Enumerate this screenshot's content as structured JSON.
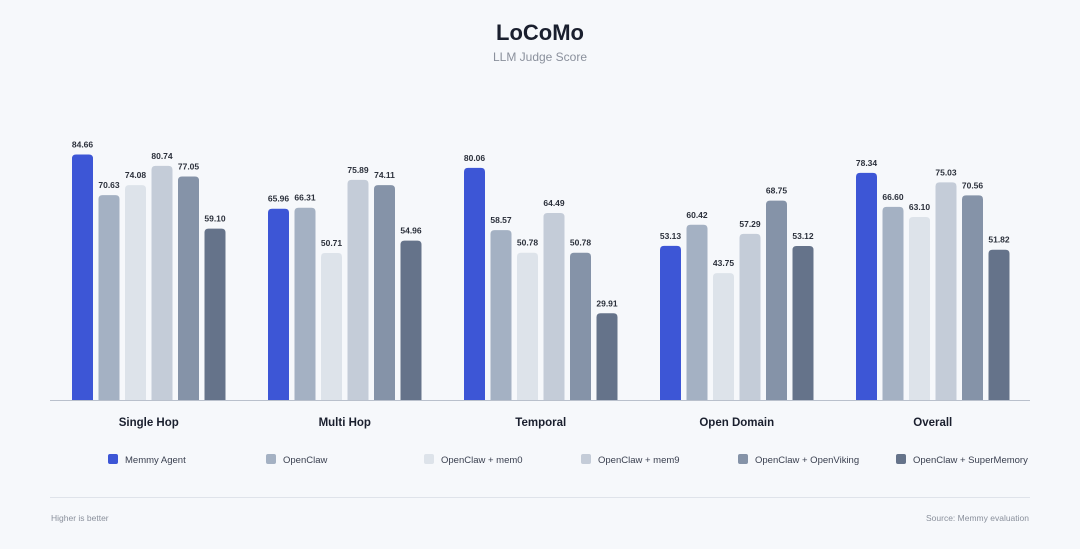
{
  "chart_data": {
    "type": "bar",
    "title": "LoCoMo",
    "subtitle": "LLM Judge Score",
    "categories": [
      "Single Hop",
      "Multi Hop",
      "Temporal",
      "Open Domain",
      "Overall"
    ],
    "ylim": [
      0,
      100
    ],
    "grid": false,
    "legend_position": "bottom",
    "series": [
      {
        "name": "Memmy Agent",
        "color": "#3d56d6",
        "values": [
          84.66,
          65.96,
          80.06,
          53.13,
          78.34
        ]
      },
      {
        "name": "OpenClaw",
        "color": "#a4b1c3",
        "values": [
          70.63,
          66.31,
          58.57,
          60.42,
          66.6
        ]
      },
      {
        "name": "OpenClaw + mem0",
        "color": "#dde3ea",
        "values": [
          74.08,
          50.71,
          50.78,
          43.75,
          63.1
        ]
      },
      {
        "name": "OpenClaw + mem9",
        "color": "#c4ccd8",
        "values": [
          80.74,
          75.89,
          64.49,
          57.29,
          75.03
        ]
      },
      {
        "name": "OpenClaw + OpenViking",
        "color": "#8593a8",
        "values": [
          77.05,
          74.11,
          50.78,
          68.75,
          70.56
        ]
      },
      {
        "name": "OpenClaw + SuperMemory",
        "color": "#65738a",
        "values": [
          59.1,
          54.96,
          29.91,
          53.12,
          51.82
        ]
      }
    ]
  },
  "footer": {
    "left": "Higher is better",
    "right": "Source: Memmy evaluation"
  }
}
